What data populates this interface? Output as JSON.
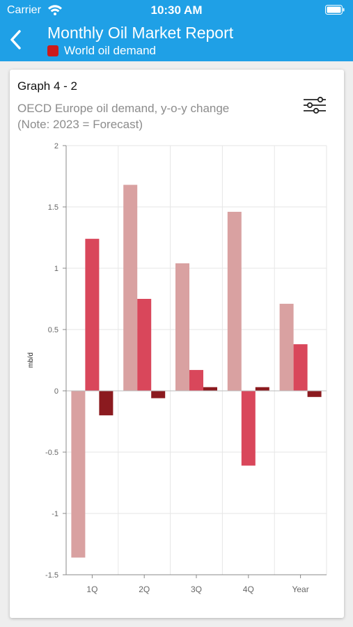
{
  "status_bar": {
    "carrier": "Carrier",
    "time": "10:30 AM"
  },
  "header": {
    "title": "Monthly Oil Market Report",
    "subtitle": "World oil demand",
    "subtitle_color": "#cc1b1b",
    "bar_color": "#1fa0e6"
  },
  "icons": {
    "back": "chevron-left-icon",
    "filter": "sliders-icon",
    "wifi": "wifi-icon",
    "battery": "battery-icon"
  },
  "card": {
    "graph_label": "Graph 4 - 2",
    "title_line1": "OECD Europe oil demand, y-o-y change",
    "title_line2": "(Note: 2023 = Forecast)"
  },
  "chart_data": {
    "type": "bar",
    "categories": [
      "1Q",
      "2Q",
      "3Q",
      "4Q",
      "Year"
    ],
    "series": [
      {
        "values": [
          -1.36,
          1.68,
          1.04,
          1.46,
          0.71
        ],
        "color": "#d9a1a1"
      },
      {
        "values": [
          1.24,
          0.75,
          0.17,
          -0.61,
          0.38
        ],
        "color": "#d9475b"
      },
      {
        "values": [
          -0.2,
          -0.06,
          0.03,
          0.03,
          -0.05
        ],
        "color": "#8b1a1f"
      }
    ],
    "ylabel": "mb/d",
    "ylim": [
      -1.5,
      2
    ],
    "yticks": [
      2,
      1.5,
      1,
      0.5,
      0,
      -0.5,
      -1,
      -1.5
    ],
    "ytick_labels": [
      "2",
      "1.5",
      "1",
      "0.5",
      "0",
      "-0.5",
      "-1",
      "-1.5"
    ],
    "grid": true
  }
}
